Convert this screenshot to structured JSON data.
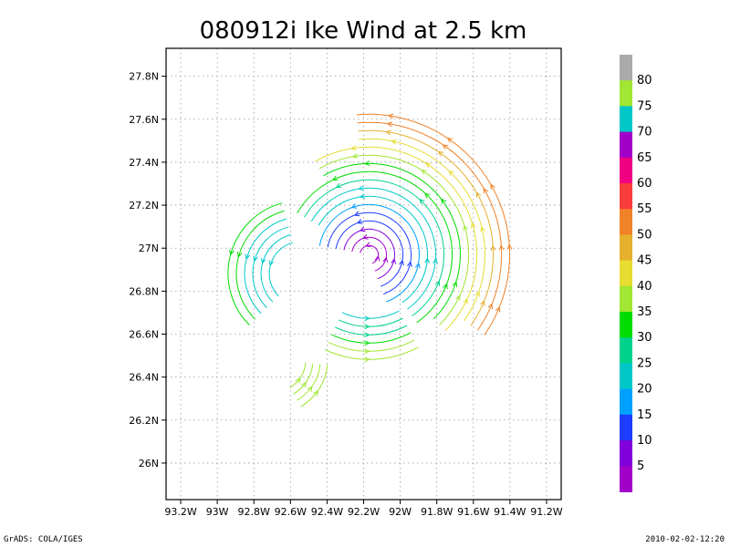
{
  "footer": {
    "left": "GrADS: COLA/IGES",
    "right": "2010-02-02-12:20"
  },
  "chart_data": {
    "type": "streamline",
    "title": "080912i Ike Wind at 2.5 km",
    "xlabel": "",
    "ylabel": "",
    "x_ticks": [
      "93.2W",
      "93W",
      "92.8W",
      "92.6W",
      "92.4W",
      "92.2W",
      "92W",
      "91.8W",
      "91.6W",
      "91.4W",
      "91.2W"
    ],
    "x_tick_values": [
      -93.2,
      -93.0,
      -92.8,
      -92.6,
      -92.4,
      -92.2,
      -92.0,
      -91.8,
      -91.6,
      -91.4,
      -91.2
    ],
    "y_ticks": [
      "26N",
      "26.2N",
      "26.4N",
      "26.6N",
      "26.8N",
      "27N",
      "27.2N",
      "27.4N",
      "27.6N",
      "27.8N"
    ],
    "y_tick_values": [
      26.0,
      26.2,
      26.4,
      26.6,
      26.8,
      27.0,
      27.2,
      27.4,
      27.6,
      27.8
    ],
    "xlim": [
      -93.28,
      -91.12
    ],
    "ylim": [
      25.83,
      27.93
    ],
    "grid": true,
    "vortex_center": {
      "lon": -92.17,
      "lat": 26.97
    },
    "colorbar": {
      "labels": [
        "5",
        "10",
        "15",
        "20",
        "25",
        "30",
        "35",
        "40",
        "45",
        "50",
        "55",
        "60",
        "65",
        "70",
        "75",
        "80"
      ],
      "colors": [
        "#a000c8",
        "#8200dc",
        "#1e3cff",
        "#00a0ff",
        "#00c8c8",
        "#00d28c",
        "#00dc00",
        "#a0e632",
        "#e6dc32",
        "#e6af2d",
        "#f08228",
        "#fa3c3c",
        "#f00082",
        "#a000c8",
        "#00c8c8",
        "#a0e632",
        "#aaaaaa"
      ]
    }
  }
}
